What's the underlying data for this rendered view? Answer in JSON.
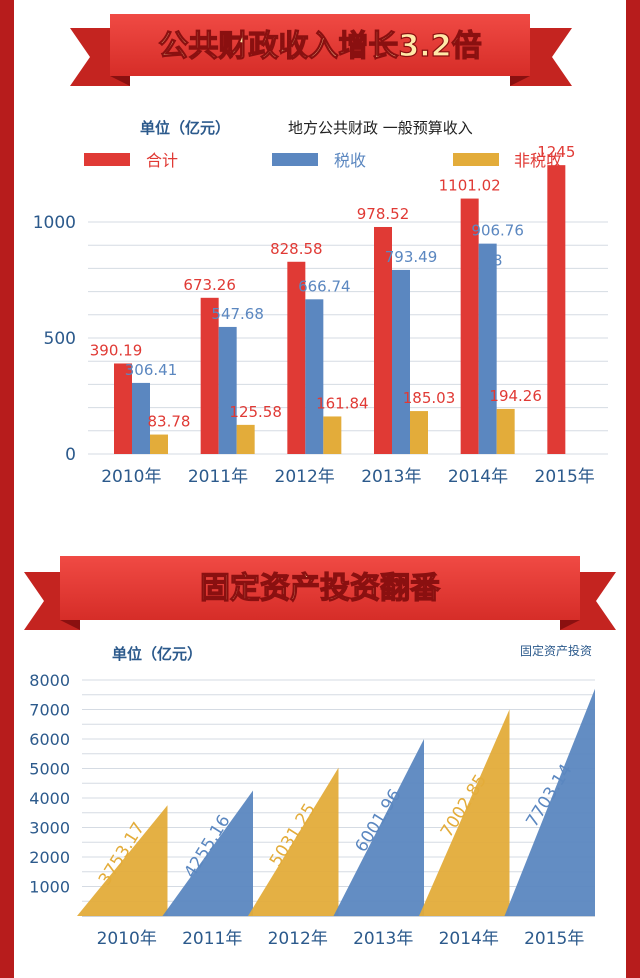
{
  "colors": {
    "red": "#e03a35",
    "blue": "#5b87c0",
    "gold": "#e3ac3a",
    "banner_red": "#e53935",
    "banner_dark": "#a31515",
    "banner_text": "#ffe9a8",
    "axis_text": "#2c5a8c",
    "frame": "#b71c1c"
  },
  "section1": {
    "banner_title": "公共财政收入增长3.2倍",
    "unit_label": "单位（亿元）",
    "subtitle": "地方公共财政 一般预算收入",
    "legend": [
      "合计",
      "税收",
      "非税收"
    ]
  },
  "section2": {
    "banner_title": "固定资产投资翻番",
    "unit_label": "单位（亿元）",
    "legend_label": "固定资产投资"
  },
  "chart_data": [
    {
      "type": "bar",
      "title": "地方公共财政 一般预算收入",
      "ylabel": "单位（亿元）",
      "categories": [
        "2010年",
        "2011年",
        "2012年",
        "2013年",
        "2014年",
        "2015年"
      ],
      "series": [
        {
          "name": "合计",
          "values": [
            390.19,
            673.26,
            828.58,
            978.52,
            1101.02,
            1245
          ],
          "labels": [
            "390.19",
            "673.26",
            "828.58",
            "978.52",
            "1101.02",
            "1245"
          ]
        },
        {
          "name": "税收",
          "values": [
            306.41,
            547.68,
            666.74,
            793.49,
            906.768,
            null
          ],
          "labels": [
            "306.41",
            "547.68",
            "666.74",
            "793.49",
            "906.76\n8",
            ""
          ]
        },
        {
          "name": "非税收",
          "values": [
            83.78,
            125.58,
            161.84,
            185.03,
            194.26,
            null
          ],
          "labels": [
            "83.78",
            "125.58",
            "161.84",
            "185.03",
            "194.26",
            ""
          ]
        }
      ],
      "ylim": [
        0,
        1000
      ],
      "yticks": [
        "0",
        "500",
        "1000"
      ],
      "grid": true,
      "legend_position": "top"
    },
    {
      "type": "bar",
      "title": "",
      "ylabel": "单位（亿元）",
      "series_name": "固定资产投资",
      "categories": [
        "2010年",
        "2011年",
        "2012年",
        "2013年",
        "2014年",
        "2015年"
      ],
      "values": [
        3753.17,
        4255.16,
        5031.25,
        6001.96,
        7002.85,
        7703.14
      ],
      "labels": [
        "3753.17",
        "4255.16",
        "5031.25",
        "6001.96",
        "7002.85",
        "7703.14"
      ],
      "ylim": [
        0,
        8000
      ],
      "yticks": [
        "1000",
        "2000",
        "3000",
        "4000",
        "5000",
        "6000",
        "7000",
        "8000"
      ],
      "grid": true,
      "legend_position": "top-right"
    }
  ]
}
